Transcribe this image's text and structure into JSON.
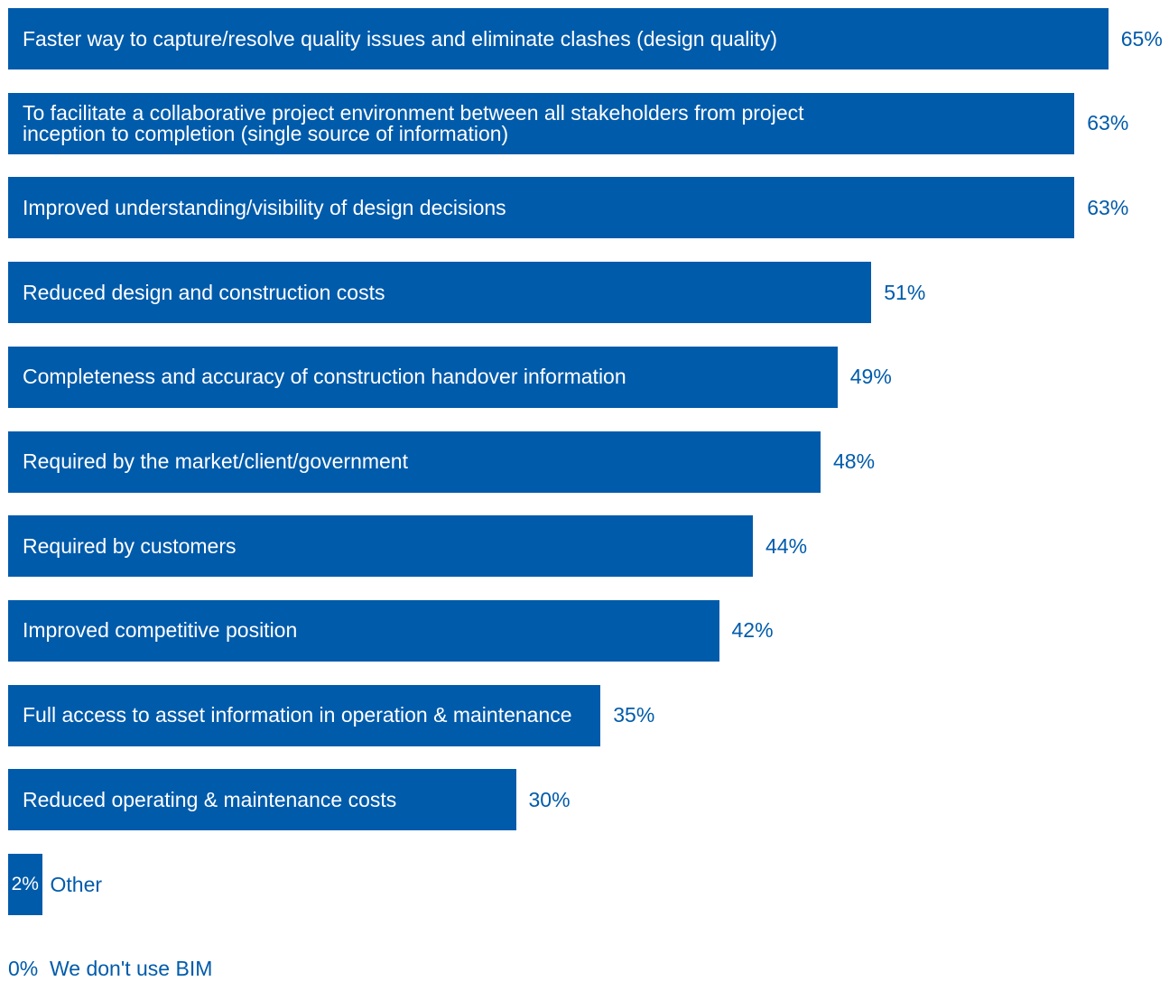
{
  "colors": {
    "bar": "#005bab",
    "label_on_bar": "#ffffff",
    "value_text": "#005bab"
  },
  "chart_data": {
    "type": "bar",
    "orientation": "horizontal",
    "unit": "%",
    "xlim": [
      0,
      65
    ],
    "grid": false,
    "categories": [
      "Faster way to capture/resolve quality issues and eliminate clashes (design quality)",
      "To facilitate a collaborative project environment between all stakeholders from project\ninception to completion (single source of information)",
      "Improved understanding/visibility of design decisions",
      "Reduced design and construction costs",
      "Completeness and accuracy of construction handover information",
      "Required by the market/client/government",
      "Required by customers",
      "Improved competitive position",
      "Full access to asset information in operation & maintenance",
      "Reduced operating & maintenance costs",
      "Other",
      "We don't use BIM"
    ],
    "values": [
      65,
      63,
      63,
      51,
      49,
      48,
      44,
      42,
      35,
      30,
      2,
      0
    ],
    "value_labels": [
      "65%",
      "63%",
      "63%",
      "51%",
      "49%",
      "48%",
      "44%",
      "42%",
      "35%",
      "30%",
      "2%",
      "0%"
    ]
  }
}
